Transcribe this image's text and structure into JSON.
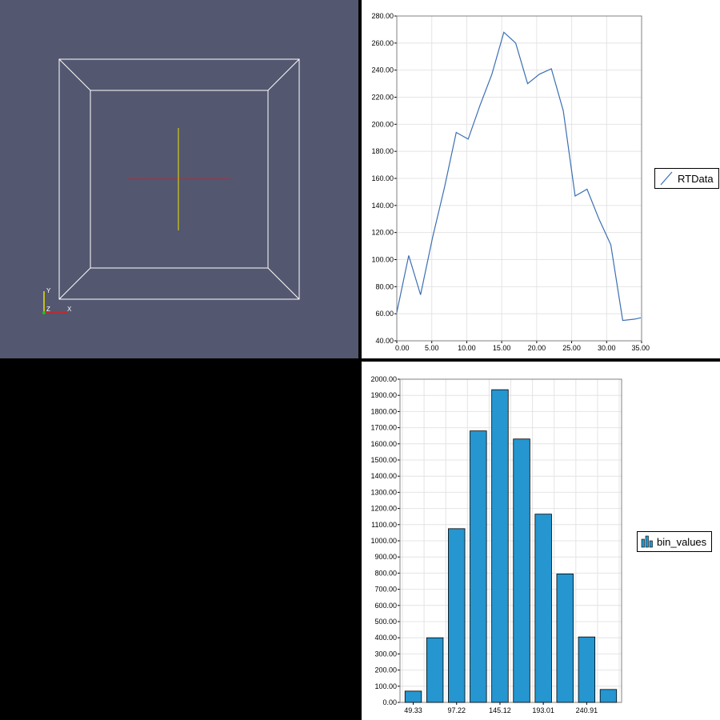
{
  "render_view": {
    "orientation_axes": {
      "y_label": "Y",
      "z_label": "Z",
      "x_label": "X"
    },
    "colors": {
      "background": "#535770",
      "outline": "#ffffff",
      "x_axis": "#d42020",
      "y_axis": "#e8e000"
    }
  },
  "chart_data": [
    {
      "type": "line",
      "title": "",
      "xlabel": "",
      "ylabel": "",
      "xlim": [
        0,
        35
      ],
      "ylim": [
        40,
        280
      ],
      "x_ticks": [
        "0.00",
        "5.00",
        "10.00",
        "15.00",
        "20.00",
        "25.00",
        "30.00",
        "35.00"
      ],
      "y_ticks": [
        "40.00",
        "60.00",
        "80.00",
        "100.00",
        "120.00",
        "140.00",
        "160.00",
        "180.00",
        "200.00",
        "220.00",
        "240.00",
        "260.00",
        "280.00"
      ],
      "grid": true,
      "legend_position": "right",
      "series": [
        {
          "name": "RTData",
          "color": "#3c6fb4",
          "x": [
            0,
            1.7,
            3.4,
            5.1,
            6.8,
            8.5,
            10.2,
            11.9,
            13.6,
            15.3,
            17,
            18.7,
            20.4,
            22.1,
            23.8,
            25.5,
            27.2,
            28.9,
            30.6,
            32.3,
            34,
            34.9
          ],
          "y": [
            61,
            103,
            74,
            116,
            153,
            194,
            189,
            214,
            237,
            268,
            260,
            230,
            237,
            241,
            210,
            147,
            152,
            130,
            111,
            55,
            56,
            57
          ]
        }
      ]
    },
    {
      "type": "bar",
      "title": "",
      "xlabel": "",
      "ylabel": "",
      "ylim": [
        0,
        2000
      ],
      "x_tick_labels": [
        "49.33",
        "97.22",
        "145.12",
        "193.01",
        "240.91"
      ],
      "y_ticks": [
        "0.00",
        "100.00",
        "200.00",
        "300.00",
        "400.00",
        "500.00",
        "600.00",
        "700.00",
        "800.00",
        "900.00",
        "1000.00",
        "1100.00",
        "1200.00",
        "1300.00",
        "1400.00",
        "1500.00",
        "1600.00",
        "1700.00",
        "1800.00",
        "1900.00",
        "2000.00"
      ],
      "grid": true,
      "legend_position": "right",
      "series": [
        {
          "name": "bin_values",
          "color": "#2596d0",
          "values": [
            70,
            400,
            1075,
            1680,
            1935,
            1630,
            1165,
            795,
            405,
            80
          ]
        }
      ]
    }
  ]
}
